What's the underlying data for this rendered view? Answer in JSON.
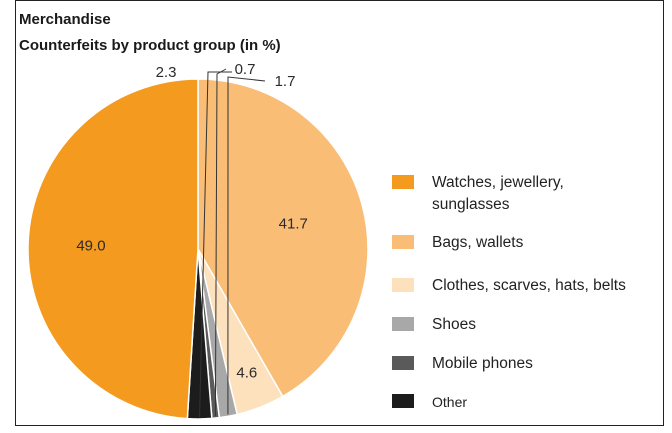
{
  "chart_data": {
    "type": "pie",
    "title": "Merchandise",
    "subtitle": "Counterfeits by product group (in %)",
    "legend_position": "right",
    "slices": [
      {
        "label": "Watches, jewellery, sunglasses",
        "value": 49.0,
        "display": "49.0",
        "color": "#f39a1f"
      },
      {
        "label": "Bags, wallets",
        "value": 41.7,
        "display": "41.7",
        "color": "#f9bd76"
      },
      {
        "label": "Clothes, scarves, hats, belts",
        "value": 4.6,
        "display": "4.6",
        "color": "#fde0bc"
      },
      {
        "label": "Shoes",
        "value": 1.7,
        "display": "1.7",
        "color": "#a8a8a8"
      },
      {
        "label": "Mobile phones",
        "value": 0.7,
        "display": "0.7",
        "color": "#5a5a5a"
      },
      {
        "label": "Other",
        "value": 2.3,
        "display": "2.3",
        "color": "#1c1c1c"
      }
    ]
  }
}
